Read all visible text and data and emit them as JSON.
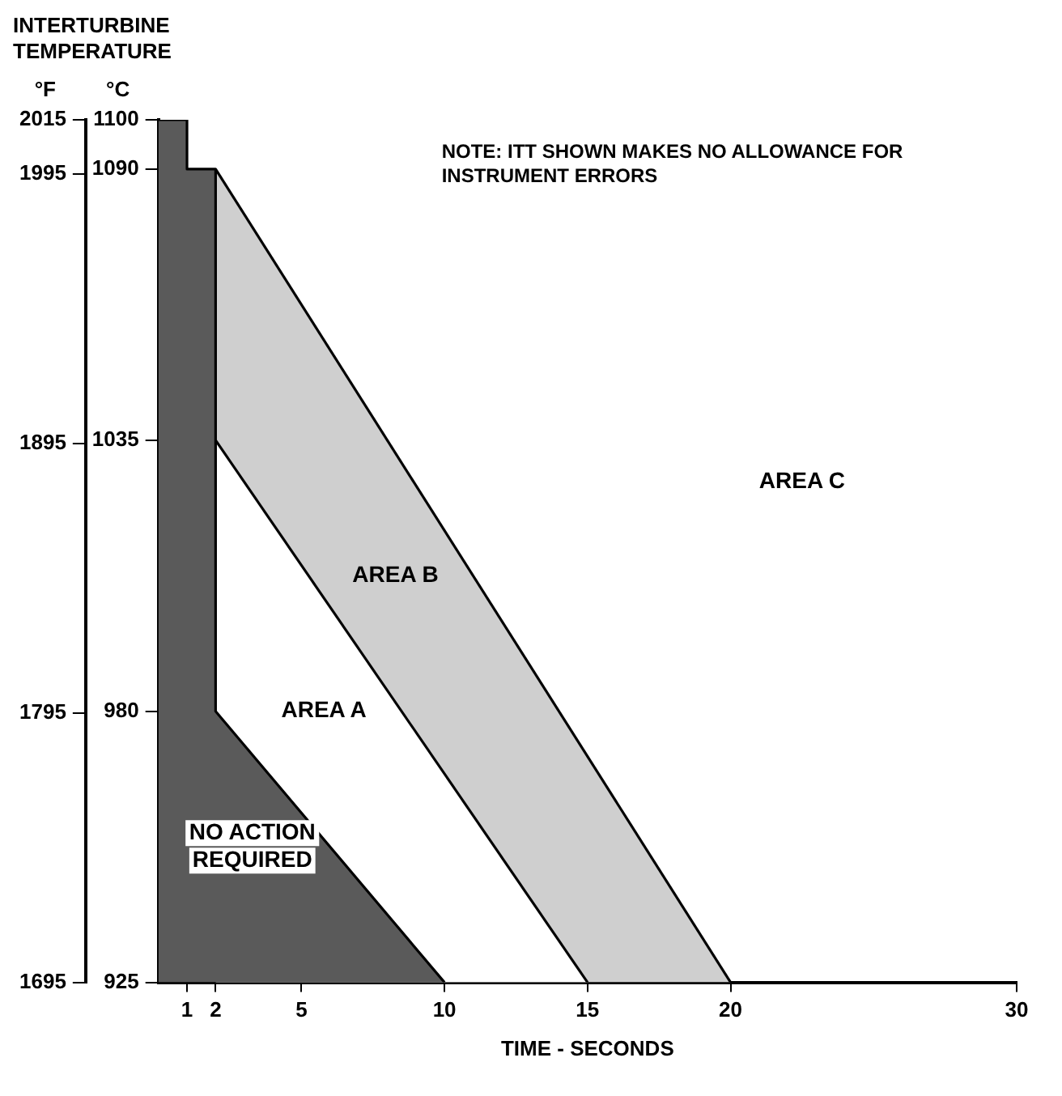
{
  "chart_data": {
    "type": "area",
    "title": "INTERTURBINE TEMPERATURE",
    "xlabel": "TIME - SECONDS",
    "ylabel": "°C",
    "y2label": "°F",
    "xlim": [
      0,
      30
    ],
    "xticks": [
      1,
      2,
      5,
      10,
      15,
      20,
      30
    ],
    "ylim": [
      925,
      1100
    ],
    "yticks": [
      925,
      980,
      1035,
      1090,
      1100
    ],
    "y2lim": [
      1695,
      2015
    ],
    "y2ticks": [
      1695,
      1795,
      1895,
      1995,
      2015
    ],
    "grid": false,
    "legend": false,
    "marker": "none",
    "line_style": "solid",
    "series": [
      {
        "name": "AREA B",
        "color": "#cfcfcf",
        "x": [
          2,
          20
        ],
        "values": [
          1090,
          925
        ]
      },
      {
        "name": "AREA A",
        "color": "#ffffff",
        "x": [
          2,
          15
        ],
        "values": [
          1035,
          925
        ]
      },
      {
        "name": "NO ACTION REQUIRED",
        "color": "#5a5a5a",
        "x": [
          0,
          1,
          1,
          2,
          2,
          10
        ],
        "values": [
          1100,
          1100,
          1090,
          1090,
          980,
          925
        ]
      }
    ],
    "annotations": [
      "NOTE: ITT SHOWN MAKES NO ALLOWANCE FOR INSTRUMENT ERRORS",
      "AREA C"
    ]
  }
}
